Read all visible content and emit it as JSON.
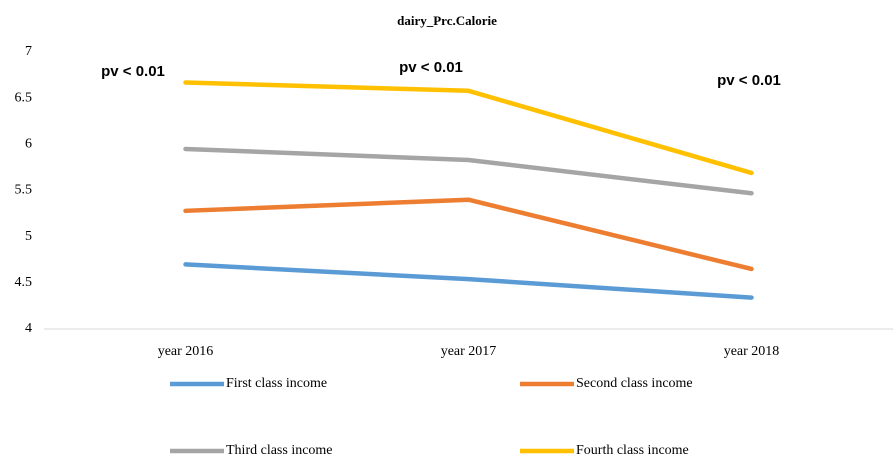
{
  "chart_data": {
    "type": "line",
    "title": "dairy_Prc.Calorie",
    "categories": [
      "year 2016",
      "year 2017",
      "year 2018"
    ],
    "series": [
      {
        "name": "First class income",
        "color": "#5b9bd5",
        "values": [
          4.7,
          4.54,
          4.34
        ]
      },
      {
        "name": "Second class income",
        "color": "#ed7d31",
        "values": [
          5.28,
          5.4,
          4.65
        ]
      },
      {
        "name": "Third class income",
        "color": "#a5a5a5",
        "values": [
          5.95,
          5.83,
          5.47
        ]
      },
      {
        "name": "Fourth class income",
        "color": "#ffc000",
        "values": [
          6.67,
          6.58,
          5.69
        ]
      }
    ],
    "annotations": [
      "pv < 0.01",
      "pv < 0.01",
      "pv < 0.01"
    ],
    "ylim": [
      4,
      7
    ],
    "yticks": [
      4,
      4.5,
      5,
      5.5,
      6,
      6.5,
      7
    ],
    "grid": false,
    "legend": "bottom"
  }
}
